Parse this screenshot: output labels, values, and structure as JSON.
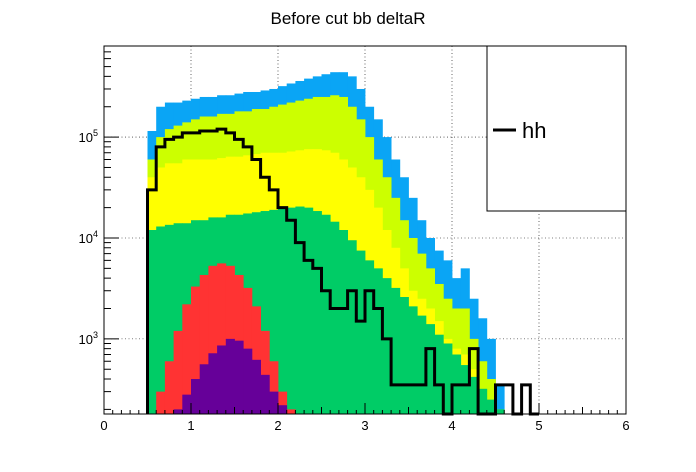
{
  "chart_data": {
    "type": "area",
    "title": "Before cut bb deltaR",
    "xlabel": "",
    "ylabel": "",
    "xlim": [
      0,
      6
    ],
    "ylim": [
      180,
      800000
    ],
    "log_y": true,
    "grid": true,
    "bin_width": 0.1,
    "bin_start": 0.5,
    "x_ticks": [
      "0",
      "1",
      "2",
      "3",
      "4",
      "5",
      "6"
    ],
    "y_ticks": [
      {
        "base": "10",
        "exp": "3",
        "value": 1000
      },
      {
        "base": "10",
        "exp": "4",
        "value": 10000
      },
      {
        "base": "10",
        "exp": "5",
        "value": 100000
      }
    ],
    "stack": [
      {
        "color": "#0aa5f5",
        "values": [
          115000,
          200000,
          220000,
          220000,
          230000,
          240000,
          250000,
          250000,
          260000,
          260000,
          270000,
          280000,
          280000,
          290000,
          300000,
          320000,
          340000,
          360000,
          380000,
          400000,
          420000,
          440000,
          440000,
          400000,
          300000,
          200000,
          150000,
          100000,
          60000,
          40000,
          25000,
          15000,
          10000,
          7500,
          6000,
          4000,
          5000,
          2500,
          1600,
          1000,
          350
        ]
      },
      {
        "color": "#ccff00",
        "values": [
          60000,
          100000,
          120000,
          130000,
          140000,
          150000,
          160000,
          160000,
          170000,
          170000,
          180000,
          180000,
          190000,
          190000,
          200000,
          210000,
          220000,
          230000,
          240000,
          250000,
          250000,
          260000,
          250000,
          200000,
          150000,
          100000,
          60000,
          40000,
          25000,
          15000,
          10000,
          7000,
          5000,
          3500,
          2500,
          2000,
          2000,
          1000,
          600,
          400,
          200
        ]
      },
      {
        "color": "#ffff00",
        "values": [
          40000,
          50000,
          55000,
          55000,
          60000,
          60000,
          60000,
          60000,
          62000,
          64000,
          64000,
          66000,
          68000,
          70000,
          70000,
          70000,
          72000,
          74000,
          76000,
          76000,
          74000,
          70000,
          60000,
          50000,
          40000,
          30000,
          20000,
          12000,
          8000,
          5000,
          3000,
          2500,
          2000,
          1500,
          1000,
          800,
          700,
          500,
          300,
          200,
          180
        ]
      },
      {
        "color": "#00cc66",
        "values": [
          12000,
          13000,
          13500,
          14000,
          14000,
          15000,
          15000,
          16000,
          16000,
          17000,
          17000,
          17500,
          18000,
          18500,
          19000,
          19500,
          20000,
          20500,
          20000,
          18500,
          17000,
          14500,
          12000,
          9500,
          7500,
          6000,
          5000,
          4000,
          3200,
          2600,
          2100,
          1700,
          1400,
          1100,
          900,
          700,
          550,
          420,
          320,
          250,
          200
        ]
      },
      {
        "color": "#ff3333",
        "values": [
          180,
          300,
          600,
          1200,
          2200,
          3300,
          4300,
          5300,
          5600,
          5300,
          4300,
          3200,
          2100,
          1200,
          600,
          300,
          200,
          180,
          180,
          180,
          180,
          180,
          180,
          180,
          180,
          180,
          180,
          180,
          180,
          180,
          180,
          180,
          180,
          180,
          180,
          180,
          180,
          180,
          180,
          180,
          180
        ]
      },
      {
        "color": "#660099",
        "values": [
          180,
          180,
          180,
          200,
          280,
          400,
          560,
          720,
          860,
          1000,
          960,
          800,
          620,
          440,
          300,
          220,
          180,
          180,
          180,
          180,
          180,
          180,
          180,
          180,
          180,
          180,
          180,
          180,
          180,
          180,
          180,
          180,
          180,
          180,
          180,
          180,
          180,
          180,
          180,
          180,
          180
        ]
      }
    ],
    "series": [
      {
        "name": "hh",
        "color": "#000000",
        "x_start": 0.5,
        "values": [
          30000,
          80000,
          95000,
          100000,
          110000,
          110000,
          115000,
          115000,
          120000,
          110000,
          95000,
          80000,
          60000,
          40000,
          30000,
          20000,
          15000,
          9000,
          6000,
          5000,
          3000,
          2000,
          2000,
          3000,
          1500,
          3000,
          2000,
          1000,
          350,
          350,
          350,
          350,
          800,
          350,
          180,
          350,
          350,
          800,
          180,
          180,
          350,
          350,
          180,
          350,
          180
        ]
      }
    ],
    "legend": {
      "position": "top-right",
      "entries": [
        "hh"
      ]
    }
  }
}
